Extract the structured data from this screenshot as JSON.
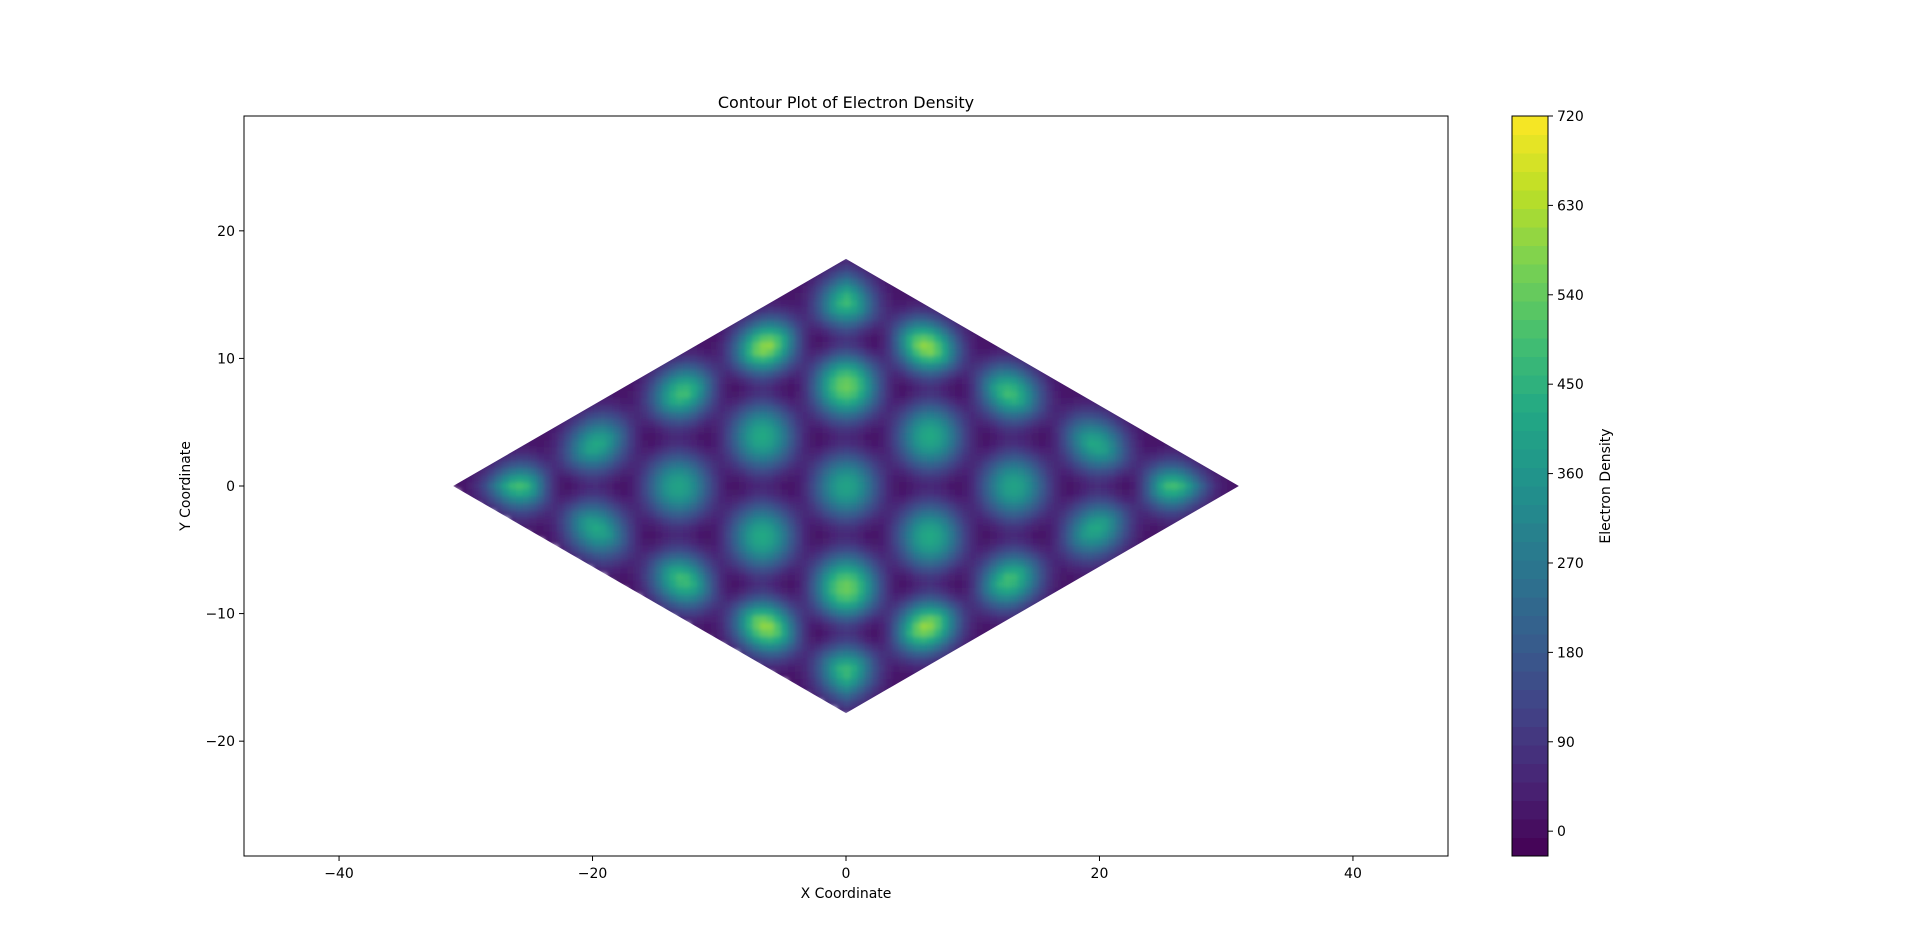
{
  "chart_data": {
    "type": "contour",
    "title": "Contour Plot of Electron Density",
    "xlabel": "X Coordinate",
    "ylabel": "Y Coordinate",
    "xlim": [
      -47.5,
      47.5
    ],
    "ylim": [
      -29,
      29
    ],
    "x_ticks": [
      -40,
      -20,
      0,
      20,
      40
    ],
    "x_tick_labels": [
      "−40",
      "−20",
      "0",
      "20",
      "40"
    ],
    "y_ticks": [
      20,
      10,
      0,
      -10,
      -20
    ],
    "y_tick_labels": [
      "20",
      "10",
      "0",
      "−10",
      "−20"
    ],
    "data_region": {
      "shape": "rhombus",
      "vertices": [
        [
          -31,
          0
        ],
        [
          0,
          17.8
        ],
        [
          31,
          0
        ],
        [
          0,
          -17.8
        ]
      ]
    },
    "colorbar": {
      "label": "Electron Density",
      "colormap": "viridis",
      "range": [
        -25,
        720
      ],
      "ticks": [
        0,
        90,
        180,
        270,
        360,
        450,
        540,
        630,
        720
      ],
      "tick_labels": [
        "0",
        "90",
        "180",
        "270",
        "360",
        "450",
        "540",
        "630",
        "720"
      ]
    },
    "grid": false
  }
}
